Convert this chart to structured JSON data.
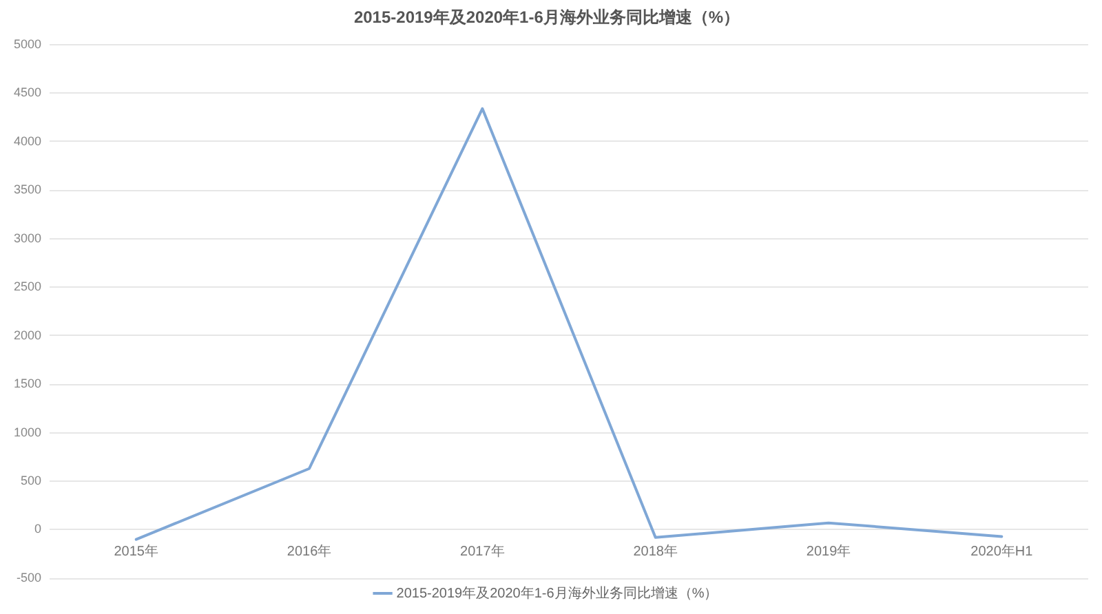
{
  "chart_data": {
    "type": "line",
    "title": "2015-2019年及2020年1-6月海外业务同比增速（%）",
    "categories": [
      "2015年",
      "2016年",
      "2017年",
      "2018年",
      "2019年",
      "2020年H1"
    ],
    "series": [
      {
        "name": "2015-2019年及2020年1-6月海外业务同比增速（%）",
        "color": "#7fa7d6",
        "values": [
          -100,
          630,
          4340,
          -80,
          70,
          -70
        ]
      }
    ],
    "ylim": [
      -500,
      5000
    ],
    "yticks": [
      -500,
      0,
      500,
      1000,
      1500,
      2000,
      2500,
      3000,
      3500,
      4000,
      4500,
      5000
    ],
    "grid": "y",
    "legend": "bottom",
    "marker": "none",
    "line_style": "solid"
  }
}
